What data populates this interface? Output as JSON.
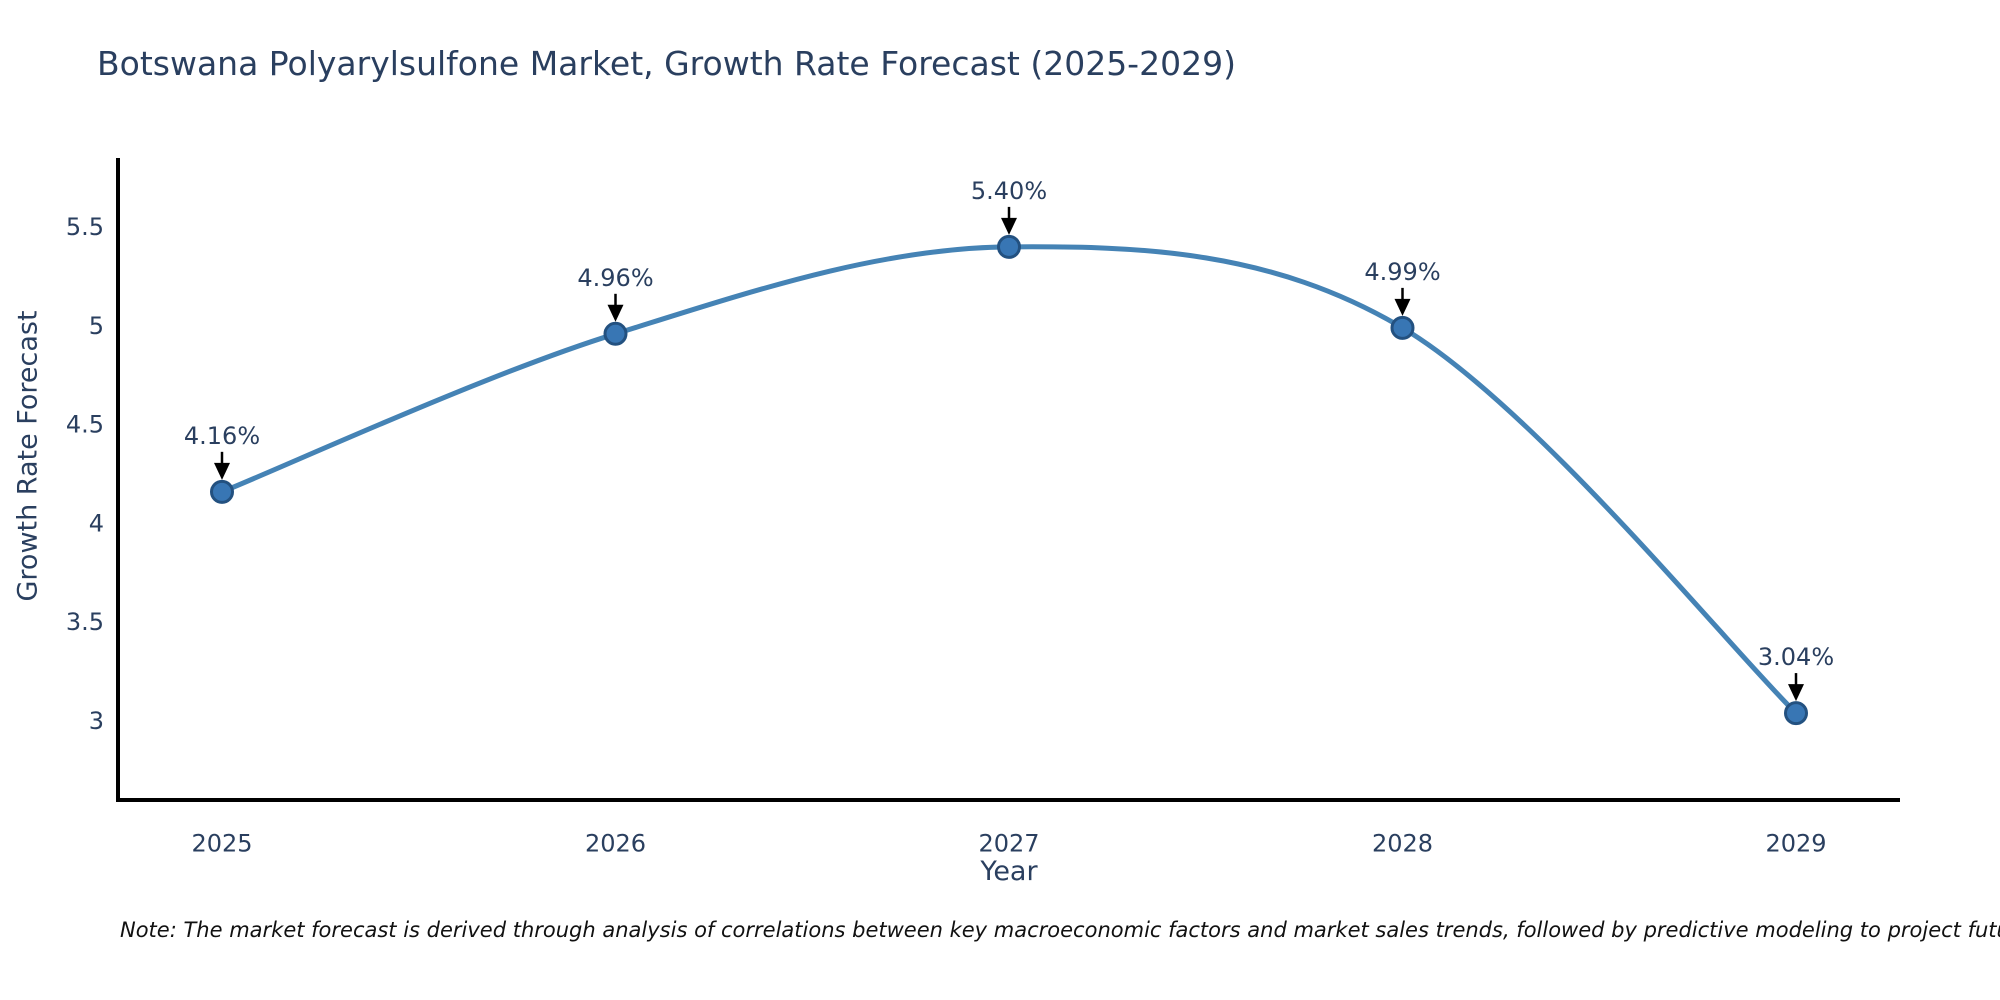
{
  "page": {
    "note": "Note: The market forecast is derived through analysis of correlations between key macroeconomic factors and market sales trends, followed by predictive modeling to project future sales"
  },
  "chart_data": {
    "type": "line",
    "title": "Botswana Polyarylsulfone Market, Growth Rate Forecast (2025-2029)",
    "xlabel": "Year",
    "ylabel": "Growth Rate Forecast",
    "categories": [
      "2025",
      "2026",
      "2027",
      "2028",
      "2029"
    ],
    "values": [
      4.16,
      4.96,
      5.4,
      4.99,
      3.04
    ],
    "point_labels": [
      "4.16%",
      "4.96%",
      "5.40%",
      "4.99%",
      "3.04%"
    ],
    "yticks": [
      "3",
      "3.5",
      "4",
      "4.5",
      "5",
      "5.5"
    ],
    "ylim": [
      2.6,
      5.85
    ],
    "line_shape": "spline",
    "grid": false,
    "legend_position": "none",
    "colors": {
      "line": "#4583b5",
      "marker_fill": "#3876b4",
      "marker_edge": "#235180",
      "axis": "#000000",
      "text": "#2a3f5f",
      "annotation_arrow": "#000000"
    }
  }
}
